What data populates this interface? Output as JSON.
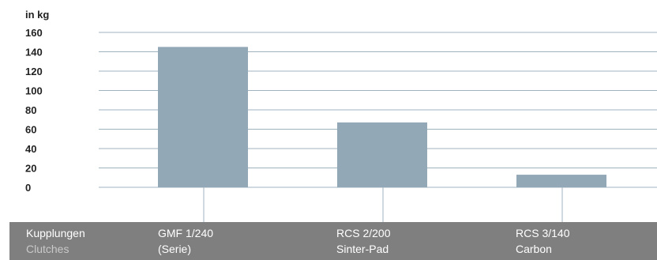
{
  "chart_data": {
    "type": "bar",
    "unit_label": "in kg",
    "y_ticks": [
      "160",
      "140",
      "120",
      "100",
      "80",
      "60",
      "40",
      "20",
      "0"
    ],
    "ylim": [
      0,
      160
    ],
    "grid": true,
    "categories": [
      "GMF 1/240 (Serie)",
      "RCS 2/200 Sinter-Pad",
      "RCS 3/140 Carbon"
    ],
    "values": [
      145,
      67,
      13
    ],
    "bar_color": "#93a8b6",
    "grid_color": "#9fb3bf"
  },
  "footer": {
    "row_header": {
      "line1": "Kupplungen",
      "line2": "Clutches"
    },
    "categories": [
      {
        "line1": "GMF 1/240",
        "line2": "(Serie)"
      },
      {
        "line1": "RCS 2/200",
        "line2": "Sinter-Pad"
      },
      {
        "line1": "RCS 3/140",
        "line2": "Carbon"
      }
    ],
    "background": "#7f7f7f"
  }
}
